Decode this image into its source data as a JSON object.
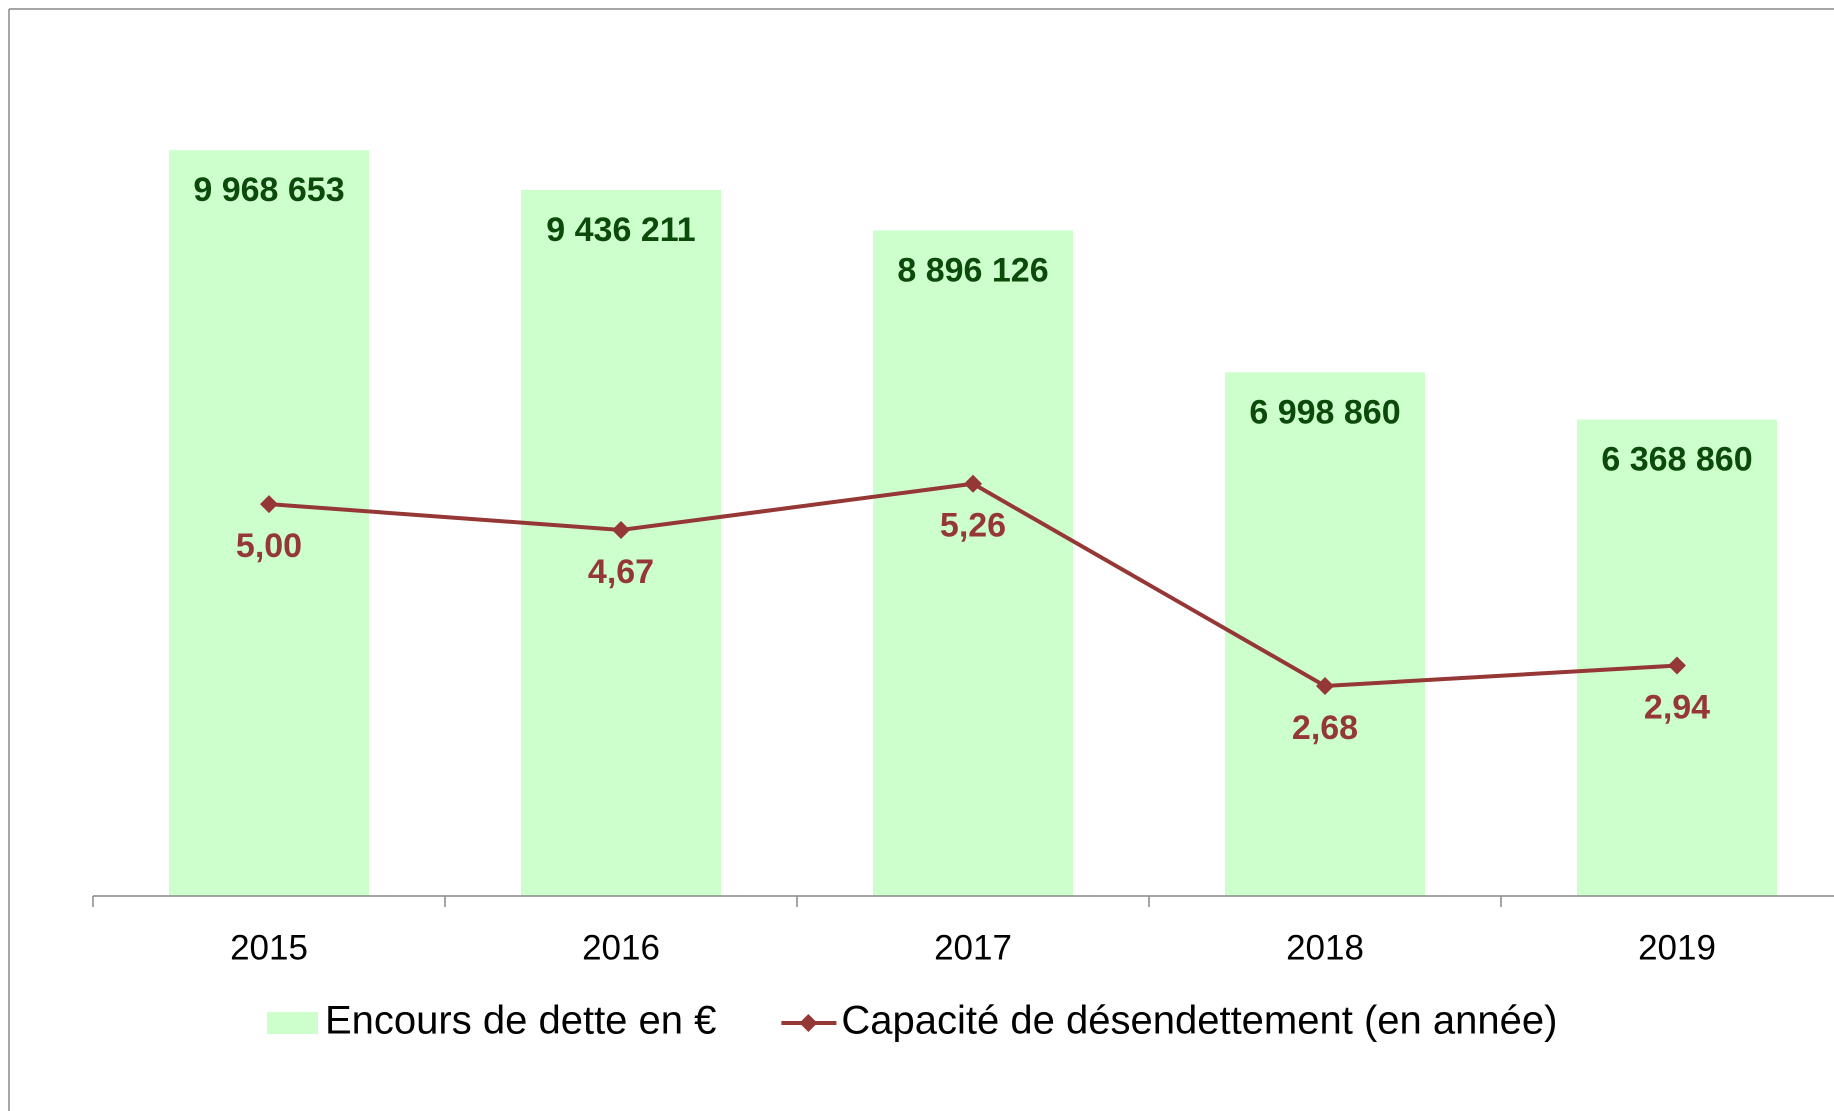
{
  "chart_data": {
    "type": "bar",
    "categories": [
      "2015",
      "2016",
      "2017",
      "2018",
      "2019"
    ],
    "series": [
      {
        "name": "Encours de dette en €",
        "type": "bar",
        "color": "#ccffcc",
        "label_color": "#0b4a0b",
        "values": [
          9968653,
          9436211,
          8896126,
          6998860,
          6368860
        ],
        "value_labels": [
          "9 968 653",
          "9 436 211",
          "8 896 126",
          "6 998 860",
          "6 368 860"
        ]
      },
      {
        "name": "Capacité de désendettement (en année)",
        "type": "line",
        "axis": "y2",
        "color": "#953735",
        "label_color": "#953735",
        "values": [
          5.0,
          4.67,
          5.26,
          2.68,
          2.94
        ],
        "value_labels": [
          "5,00",
          "4,67",
          "5,26",
          "2,68",
          "2,94"
        ]
      }
    ],
    "ylim": [
      0,
      11000000
    ],
    "y2lim": [
      0,
      10.5
    ],
    "legend": "bottom"
  }
}
